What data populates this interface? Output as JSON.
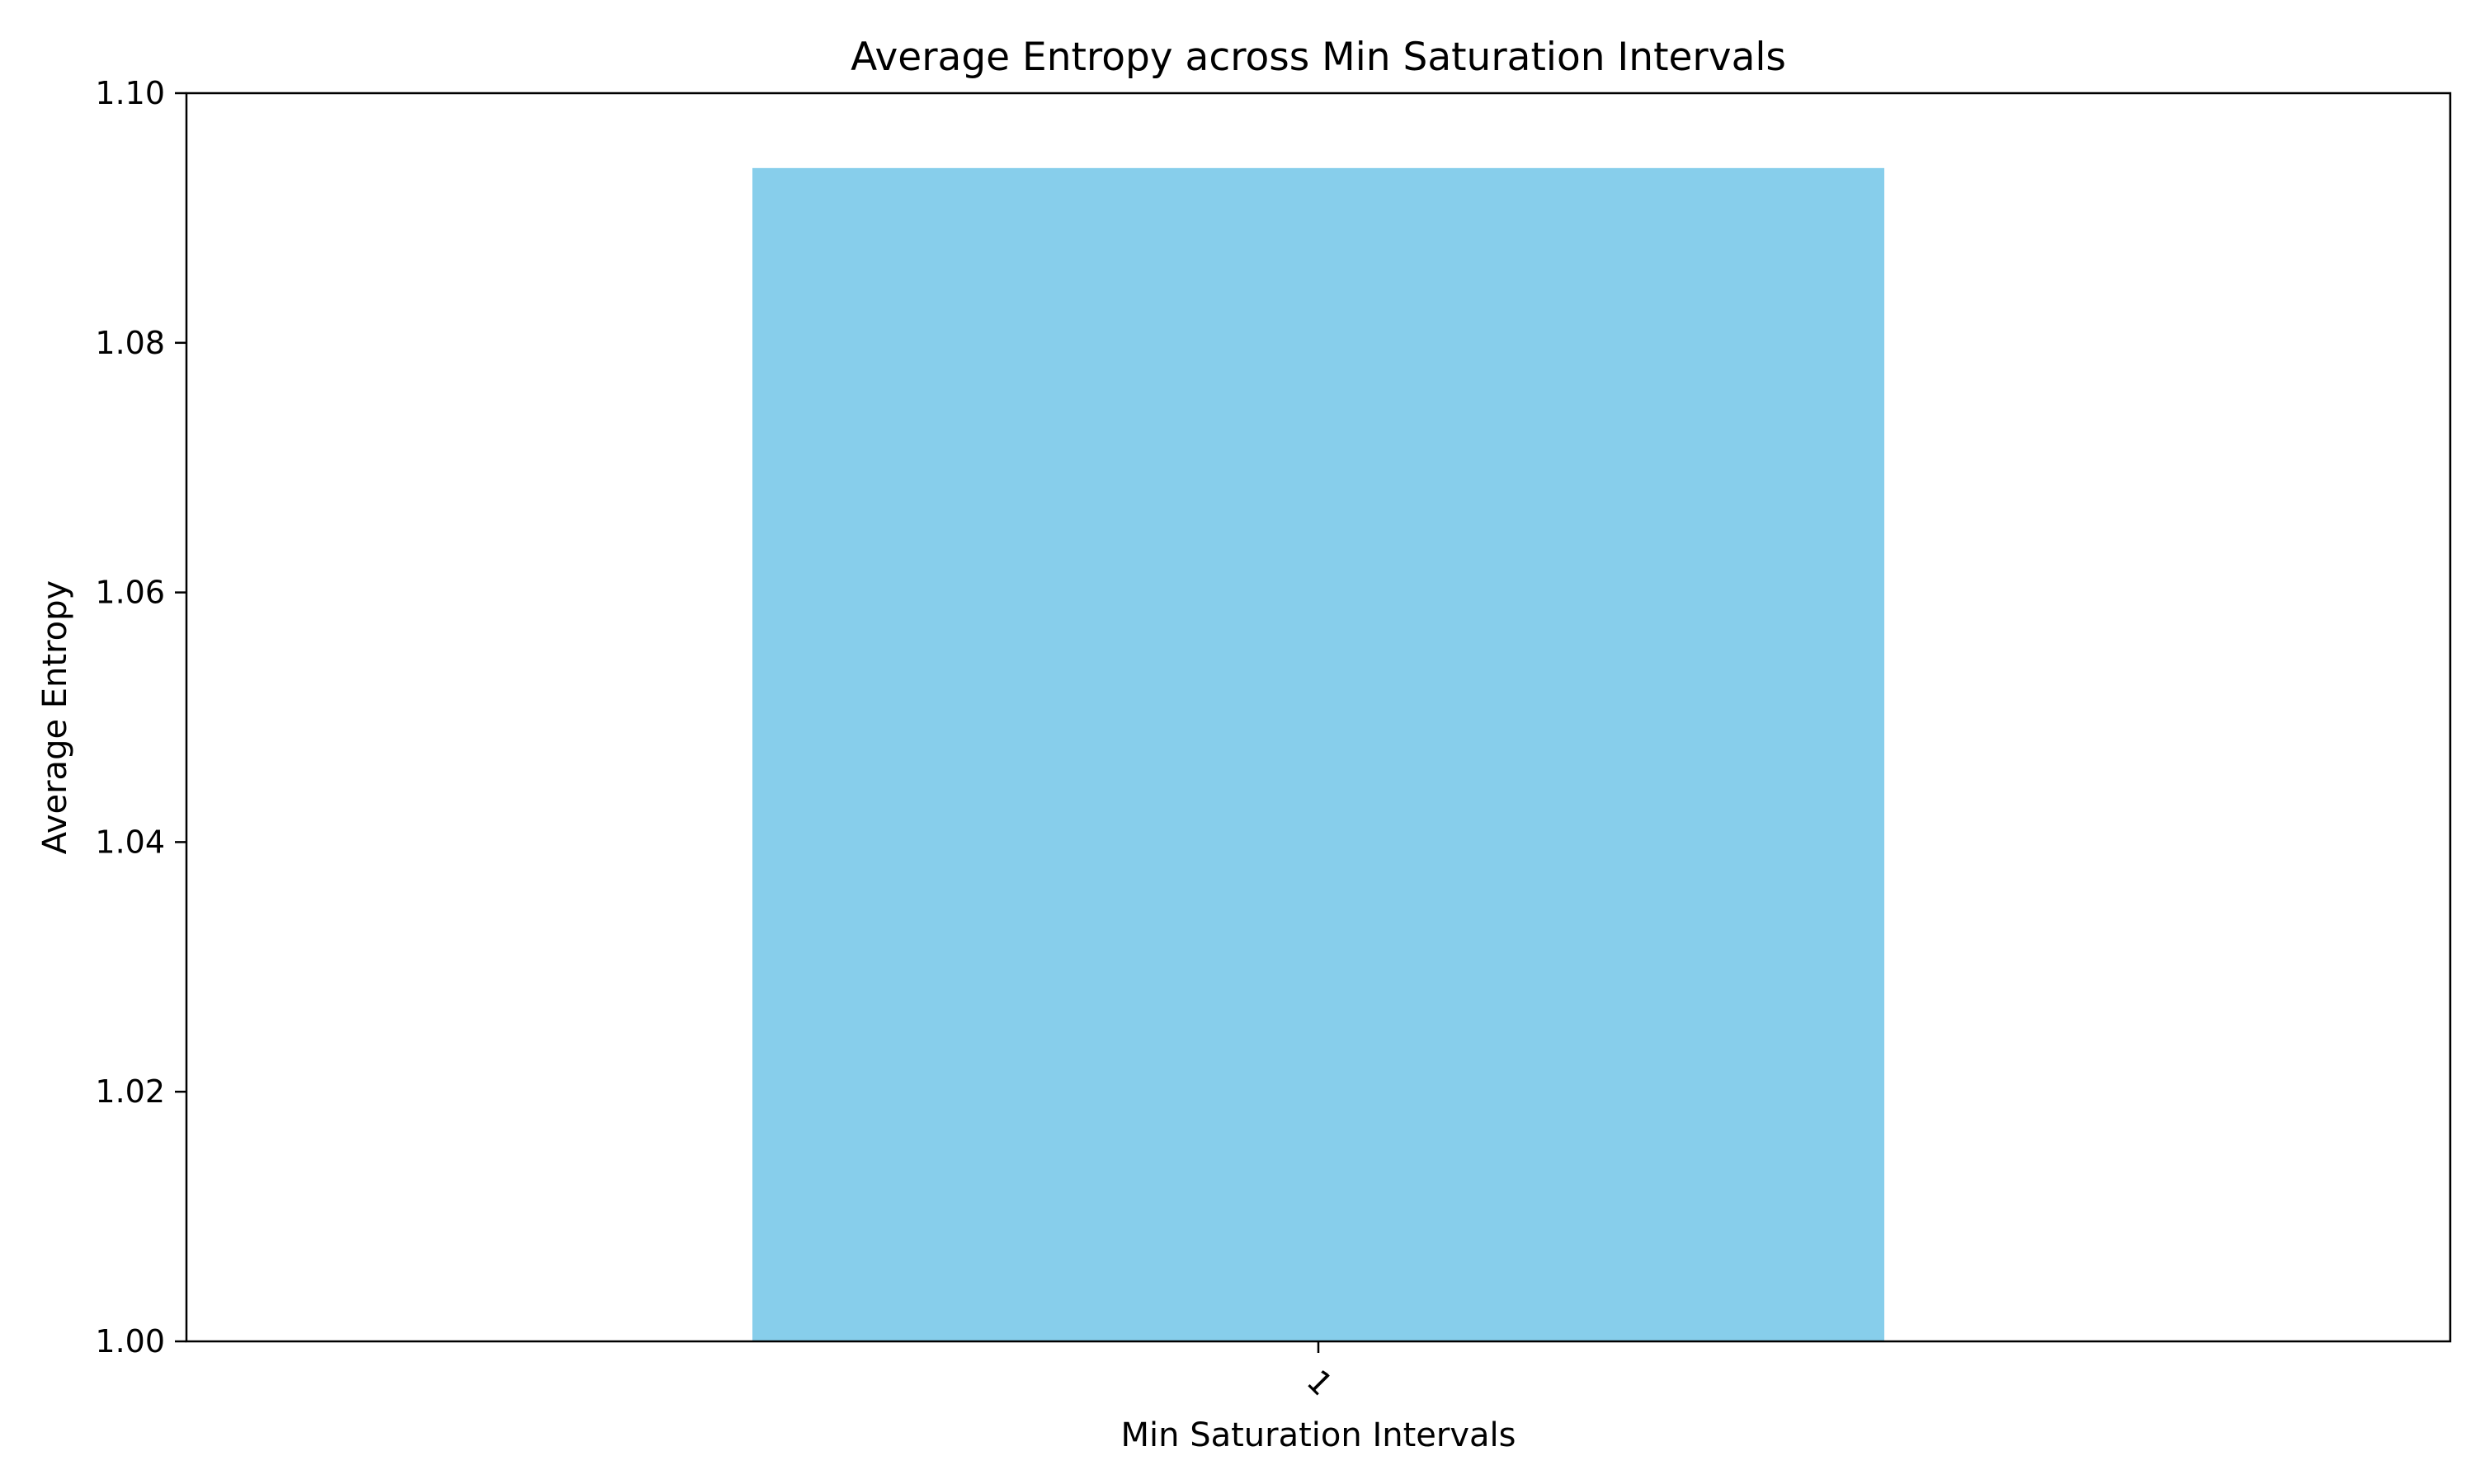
{
  "chart_data": {
    "type": "bar",
    "title": "Average Entropy across Min Saturation Intervals",
    "xlabel": "Min Saturation Intervals",
    "ylabel": "Average Entropy",
    "categories": [
      "1"
    ],
    "values": [
      1.094
    ],
    "ylim": [
      1.0,
      1.1
    ],
    "yticks": [
      "1.00",
      "1.02",
      "1.04",
      "1.06",
      "1.08",
      "1.10"
    ],
    "x_tick_rotation_deg": 45,
    "bar_color": "#87CEEB",
    "grid": false,
    "legend": "none"
  }
}
